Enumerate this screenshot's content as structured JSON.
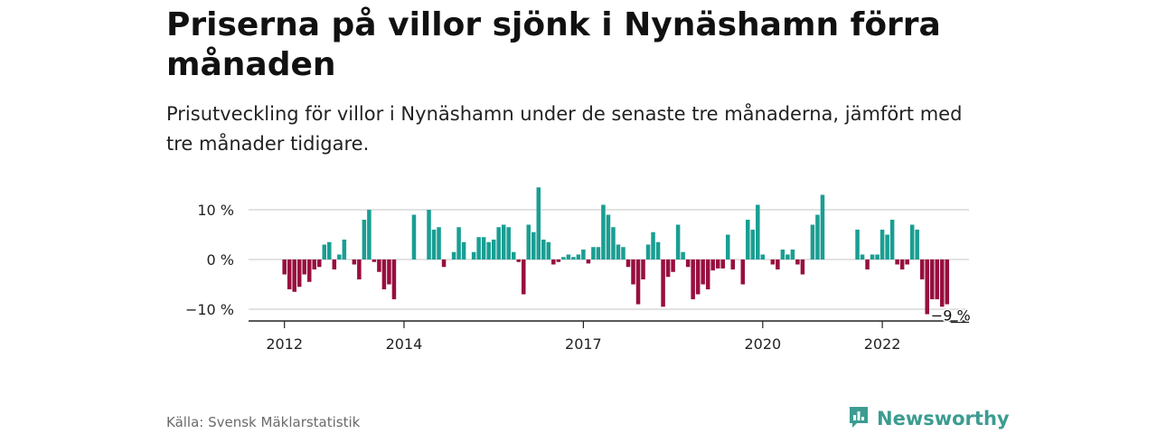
{
  "header": {
    "title": "Priserna på villor sjönk i Nynäshamn förra månaden",
    "subtitle": "Prisutveckling för villor i Nynäshamn under de senaste tre månaderna, jämfört med tre månader tidigare."
  },
  "footer": {
    "source": "Källa: Svensk Mäklarstatistik",
    "brand": "Newsworthy",
    "brand_icon": "bar-chart-speech-bubble-icon"
  },
  "colors": {
    "positive": "#1a9e93",
    "negative": "#980e3f",
    "grid": "#d9d9d9",
    "axis": "#222222"
  },
  "chart_data": {
    "type": "bar",
    "title": "",
    "xlabel": "",
    "ylabel": "",
    "unit": "%",
    "ylim": [
      -12.5,
      14.5
    ],
    "yticks": [
      {
        "value": 10,
        "label": "10 %"
      },
      {
        "value": 0,
        "label": "0 %"
      },
      {
        "value": -10,
        "label": "−10 %"
      }
    ],
    "xticks": [
      {
        "value": 2012.0,
        "label": "2012"
      },
      {
        "value": 2014.0,
        "label": "2014"
      },
      {
        "value": 2017.0,
        "label": "2017"
      },
      {
        "value": 2020.0,
        "label": "2020"
      },
      {
        "value": 2022.0,
        "label": "2022"
      }
    ],
    "xlim": [
      2011.4,
      2023.45
    ],
    "x_start": "2012-01",
    "frequency": "monthly",
    "grid": true,
    "last_value_label": "−9 %",
    "values": [
      -3,
      -6,
      -6.5,
      -5.5,
      -3,
      -4.5,
      -2,
      -1.5,
      3,
      3.5,
      -2,
      1,
      4,
      0,
      -1,
      -4,
      8,
      10,
      -0.5,
      -2.5,
      -6,
      -5,
      -8,
      0,
      0,
      0,
      9,
      0,
      0,
      10,
      6,
      6.5,
      -1.5,
      0,
      1.5,
      6.5,
      3.5,
      0,
      1.5,
      4.5,
      4.5,
      3.5,
      4,
      6.5,
      7,
      6.5,
      1.5,
      -0.5,
      -7,
      7,
      5.5,
      14.5,
      4,
      3.5,
      -1,
      -0.5,
      0.5,
      1,
      0.5,
      1,
      2,
      -0.8,
      2.5,
      2.5,
      11,
      9,
      6.5,
      3,
      2.5,
      -1.5,
      -5,
      -9,
      -4,
      3,
      5.5,
      3.5,
      -9.5,
      -3.5,
      -2.5,
      7,
      1.5,
      -1.5,
      -8,
      -7,
      -5,
      -6,
      -2.2,
      -1.8,
      -1.8,
      5,
      -2,
      0,
      -5,
      8,
      6,
      11,
      1,
      0,
      -1,
      -2,
      2,
      1,
      2,
      -1,
      -3,
      0,
      7,
      9,
      13,
      0,
      0,
      0,
      0,
      0,
      0,
      6,
      1,
      -2,
      1,
      1,
      6,
      5,
      8,
      -1,
      -2,
      -1,
      7,
      6,
      -4,
      -11,
      -8,
      -8,
      -9.5,
      -9
    ]
  }
}
